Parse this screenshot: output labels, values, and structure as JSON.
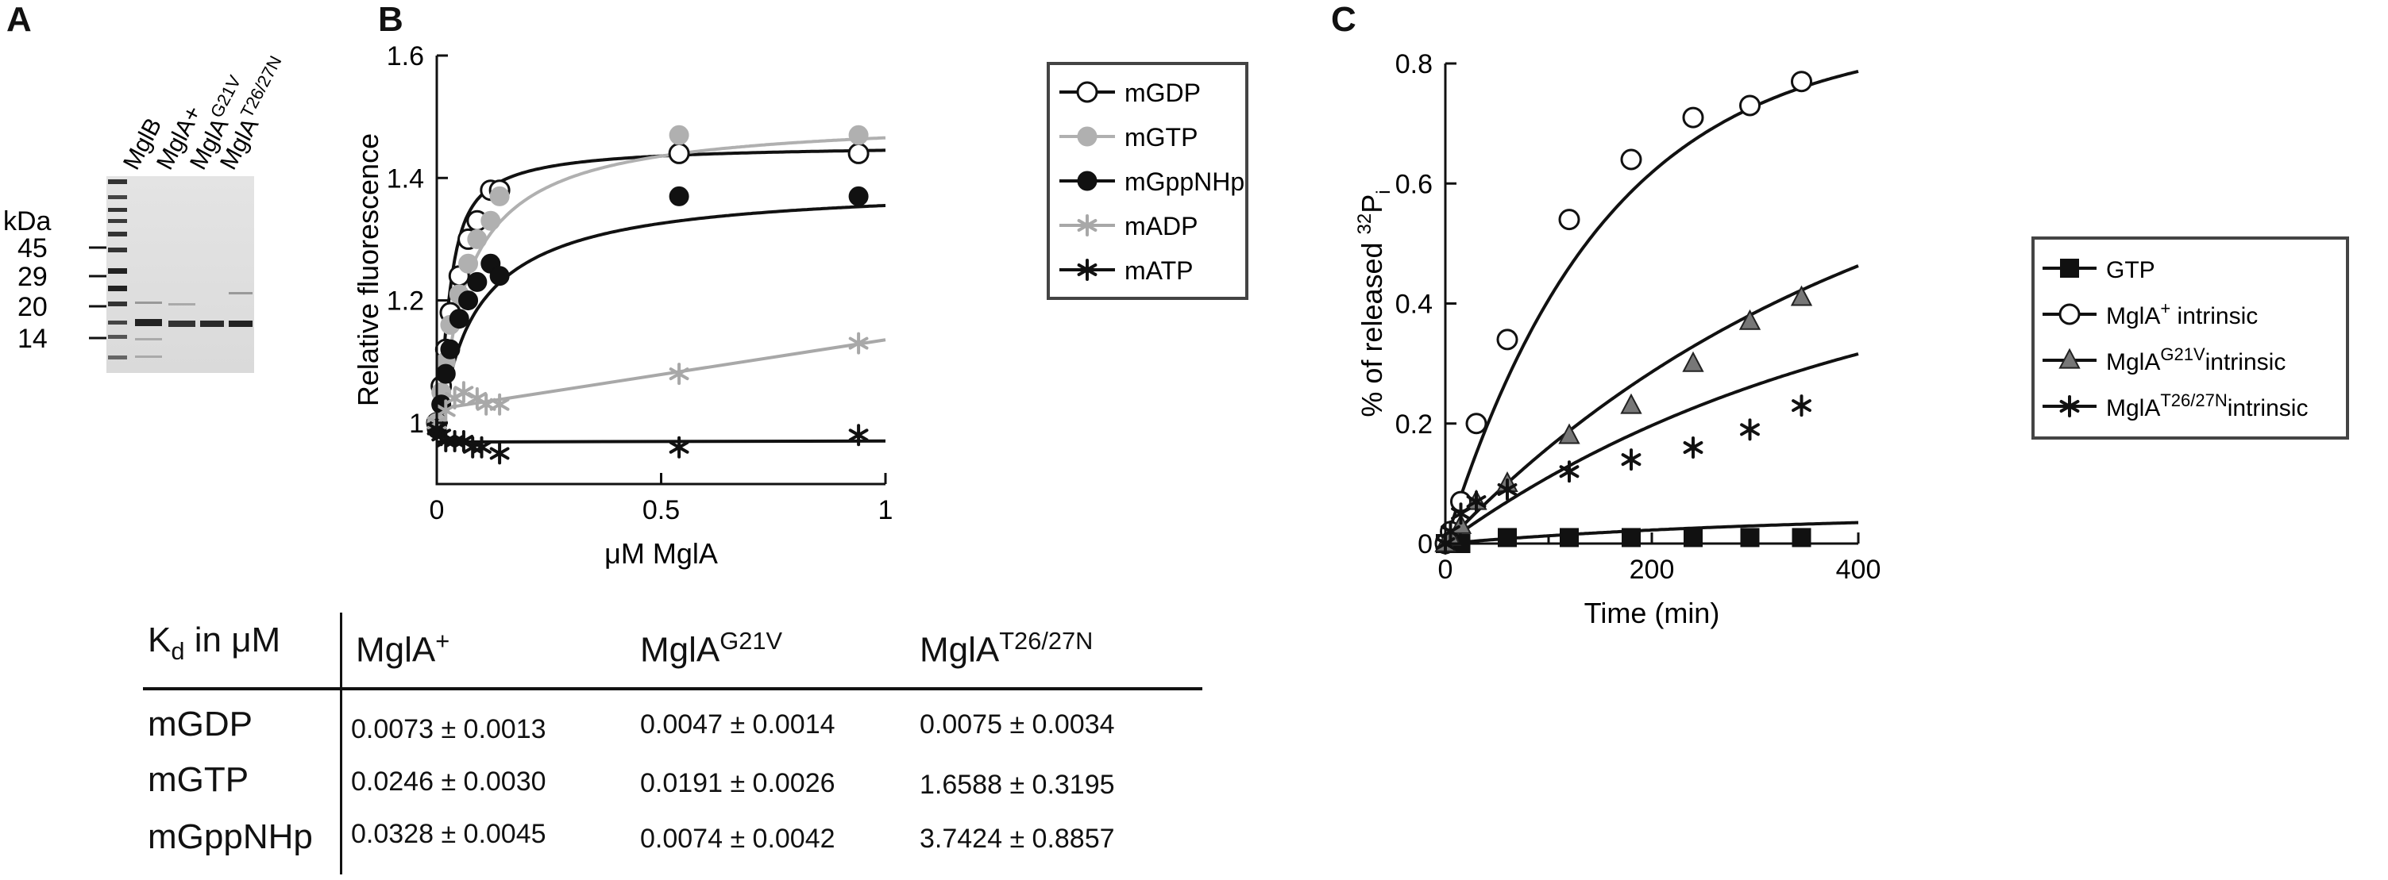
{
  "panel_labels": {
    "a": "A",
    "b": "B",
    "c": "C"
  },
  "gel": {
    "unit_label": "kDa",
    "marker_labels": [
      "45",
      "29",
      "20",
      "14"
    ],
    "lane_labels": [
      {
        "base": "MglB",
        "sup": ""
      },
      {
        "base": "MglA+",
        "sup": ""
      },
      {
        "base": "MglA",
        "sup": "G21V"
      },
      {
        "base": "MglA",
        "sup": "T26/27N"
      }
    ]
  },
  "chart_data": [
    {
      "type": "scatter",
      "panel": "B",
      "xlabel": "μM MglA",
      "ylabel": "Relative fluorescence",
      "xlim": [
        0,
        1
      ],
      "ylim": [
        0.9,
        1.6
      ],
      "xticks": [
        "0",
        "0.5",
        "1"
      ],
      "yticks": [
        "1",
        "1.2",
        "1.4",
        "1.6"
      ],
      "legend_position": "top-right",
      "series": [
        {
          "name": "mGDP",
          "marker": "open-circle",
          "color": "#111111",
          "x": [
            0,
            0.01,
            0.02,
            0.03,
            0.05,
            0.07,
            0.09,
            0.12,
            0.14,
            0.54,
            0.94
          ],
          "y": [
            1.0,
            1.06,
            1.12,
            1.18,
            1.24,
            1.3,
            1.33,
            1.38,
            1.38,
            1.44,
            1.44
          ],
          "fit": {
            "bmax": 0.455,
            "kd": 0.0073
          }
        },
        {
          "name": "mGTP",
          "marker": "filled-circle",
          "color": "#b0b0b0",
          "x": [
            0,
            0.01,
            0.02,
            0.03,
            0.05,
            0.07,
            0.09,
            0.12,
            0.14,
            0.54,
            0.94
          ],
          "y": [
            1.0,
            1.05,
            1.1,
            1.16,
            1.21,
            1.26,
            1.3,
            1.33,
            1.37,
            1.47,
            1.47
          ],
          "fit": {
            "bmax": 0.5,
            "kd": 0.0246
          }
        },
        {
          "name": "mGppNHp",
          "marker": "filled-circle",
          "color": "#111111",
          "x": [
            0,
            0.01,
            0.02,
            0.03,
            0.05,
            0.07,
            0.09,
            0.12,
            0.14,
            0.54,
            0.94
          ],
          "y": [
            0.99,
            1.03,
            1.08,
            1.12,
            1.17,
            1.2,
            1.23,
            1.26,
            1.24,
            1.37,
            1.37
          ],
          "fit": {
            "bmax": 0.39,
            "kd": 0.0328
          }
        },
        {
          "name": "mADP",
          "marker": "asterisk",
          "color": "#a8a8a8",
          "x": [
            0,
            0.02,
            0.04,
            0.06,
            0.09,
            0.11,
            0.14,
            0.54,
            0.94
          ],
          "y": [
            1.0,
            1.02,
            1.04,
            1.05,
            1.04,
            1.03,
            1.03,
            1.08,
            1.13
          ]
        },
        {
          "name": "mATP",
          "marker": "asterisk",
          "color": "#111111",
          "x": [
            0,
            0.01,
            0.02,
            0.04,
            0.06,
            0.08,
            0.1,
            0.14,
            0.54,
            0.94
          ],
          "y": [
            0.99,
            0.98,
            0.97,
            0.97,
            0.97,
            0.96,
            0.96,
            0.95,
            0.96,
            0.98
          ]
        }
      ]
    },
    {
      "type": "scatter",
      "panel": "C",
      "xlabel": "Time (min)",
      "ylabel": {
        "base": "% of released ",
        "sup": "32",
        "sub_pre": "P",
        "sub": "i"
      },
      "xlim": [
        0,
        400
      ],
      "ylim": [
        0,
        0.8
      ],
      "xticks": [
        "0",
        "200",
        "400"
      ],
      "yticks": [
        "0",
        "0.2",
        "0.4",
        "0.6",
        "0.8"
      ],
      "legend_position": "right",
      "series": [
        {
          "name": "GTP",
          "marker": "filled-square",
          "color": "#111111",
          "x": [
            0,
            5,
            15,
            60,
            120,
            180,
            240,
            295,
            345
          ],
          "y": [
            0.0,
            0.0,
            0.0,
            0.01,
            0.01,
            0.01,
            0.01,
            0.01,
            0.01
          ]
        },
        {
          "name": "MglA+ intrinsic",
          "label": {
            "base": "MglA",
            "sup": "+",
            "suffix": " intrinsic"
          },
          "marker": "open-circle",
          "color": "#111111",
          "x": [
            0,
            5,
            15,
            30,
            60,
            120,
            180,
            240,
            295,
            345
          ],
          "y": [
            0.0,
            0.02,
            0.07,
            0.2,
            0.34,
            0.54,
            0.64,
            0.71,
            0.73,
            0.77
          ]
        },
        {
          "name": "MglAG21V intrinsic",
          "label": {
            "base": "MglA",
            "sup": "G21V",
            "suffix": "intrinsic"
          },
          "marker": "filled-triangle",
          "color": "#777777",
          "x": [
            0,
            5,
            15,
            30,
            60,
            120,
            180,
            240,
            295,
            345
          ],
          "y": [
            0.0,
            0.01,
            0.03,
            0.07,
            0.1,
            0.18,
            0.23,
            0.3,
            0.37,
            0.41
          ]
        },
        {
          "name": "MglAT26/27N intrinsic",
          "label": {
            "base": "MglA",
            "sup": "T26/27N",
            "suffix": "intrinsic"
          },
          "marker": "asterisk",
          "color": "#111111",
          "x": [
            0,
            5,
            15,
            30,
            60,
            120,
            180,
            240,
            295,
            345
          ],
          "y": [
            0.0,
            0.02,
            0.05,
            0.07,
            0.09,
            0.12,
            0.14,
            0.16,
            0.19,
            0.23
          ]
        }
      ]
    },
    {
      "type": "table",
      "header": {
        "corner": {
          "base": "K",
          "sub": "d",
          "suffix": " in μM"
        },
        "columns": [
          {
            "base": "MglA",
            "sup": "+"
          },
          {
            "base": "MglA",
            "sup": "G21V"
          },
          {
            "base": "MglA",
            "sup": "T26/27N"
          }
        ]
      },
      "rows": [
        {
          "label": "mGDP",
          "values": [
            "0.0073 ± 0.0013",
            "0.0047 ± 0.0014",
            "0.0075 ± 0.0034"
          ]
        },
        {
          "label": "mGTP",
          "values": [
            "0.0246 ± 0.0030",
            "0.0191 ± 0.0026",
            "1.6588 ± 0.3195"
          ]
        },
        {
          "label": "mGppNHp",
          "values": [
            "0.0328 ± 0.0045",
            "0.0074 ± 0.0042",
            "3.7424 ± 0.8857"
          ]
        }
      ]
    }
  ]
}
